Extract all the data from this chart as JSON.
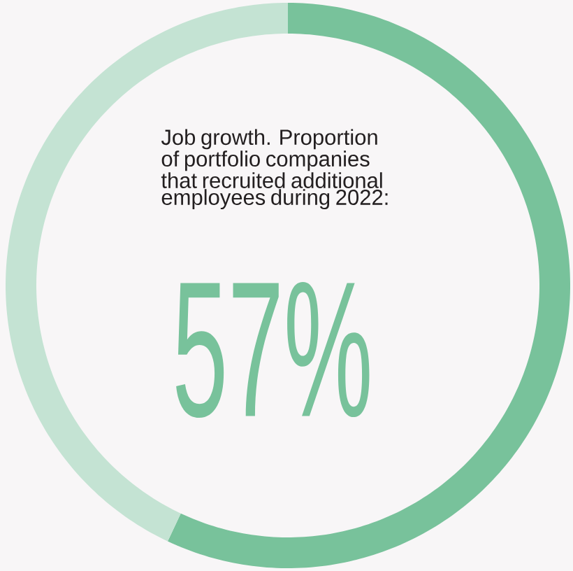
{
  "chart_data": {
    "type": "donut",
    "title": "Job growth. Proportion of portfolio companies that recruited additional employees during 2022:",
    "categories": [
      null,
      null
    ],
    "values": [
      57,
      43
    ],
    "colors": [
      "#78c29b",
      "#c4e3d3"
    ],
    "value_labels": [
      "57%",
      null
    ]
  }
}
